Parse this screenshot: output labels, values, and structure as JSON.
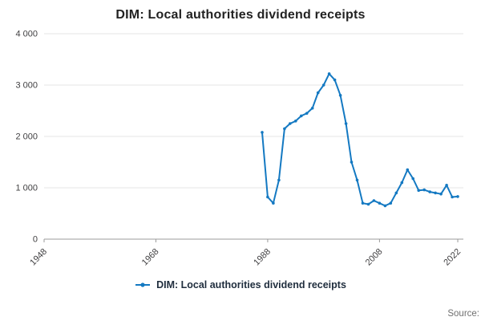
{
  "page": {
    "title": "DIM: Local authorities dividend receipts",
    "source_label": "Source:"
  },
  "legend": {
    "label": "DIM: Local authorities dividend receipts"
  },
  "colors": {
    "line": "#1479c2",
    "grid": "#e6e6e6",
    "axis": "#9b9b9b",
    "tick_text": "#414042",
    "title_text": "#222222",
    "source_text": "#707070"
  },
  "chart_data": {
    "type": "line",
    "title": "DIM: Local authorities dividend receipts",
    "xlabel": "",
    "ylabel": "",
    "xlim": [
      1948,
      2023
    ],
    "ylim": [
      0,
      4000
    ],
    "yticks": [
      0,
      1000,
      2000,
      3000,
      4000
    ],
    "ytick_labels": [
      "0",
      "1 000",
      "2 000",
      "3 000",
      "4 000"
    ],
    "xticks": [
      1948,
      1968,
      1988,
      2008,
      2022
    ],
    "grid": true,
    "legend_position": "bottom",
    "series": [
      {
        "name": "DIM: Local authorities dividend receipts",
        "x": [
          1987,
          1988,
          1989,
          1990,
          1991,
          1992,
          1993,
          1994,
          1995,
          1996,
          1997,
          1998,
          1999,
          2000,
          2001,
          2002,
          2003,
          2004,
          2005,
          2006,
          2007,
          2008,
          2009,
          2010,
          2011,
          2012,
          2013,
          2014,
          2015,
          2016,
          2017,
          2018,
          2019,
          2020,
          2021,
          2022
        ],
        "values": [
          2080,
          820,
          700,
          1150,
          2150,
          2250,
          2300,
          2400,
          2450,
          2550,
          2850,
          3000,
          3220,
          3100,
          2800,
          2250,
          1500,
          1150,
          700,
          680,
          750,
          700,
          650,
          700,
          900,
          1100,
          1350,
          1180,
          950,
          960,
          920,
          900,
          880,
          1050,
          820,
          830
        ]
      }
    ]
  }
}
